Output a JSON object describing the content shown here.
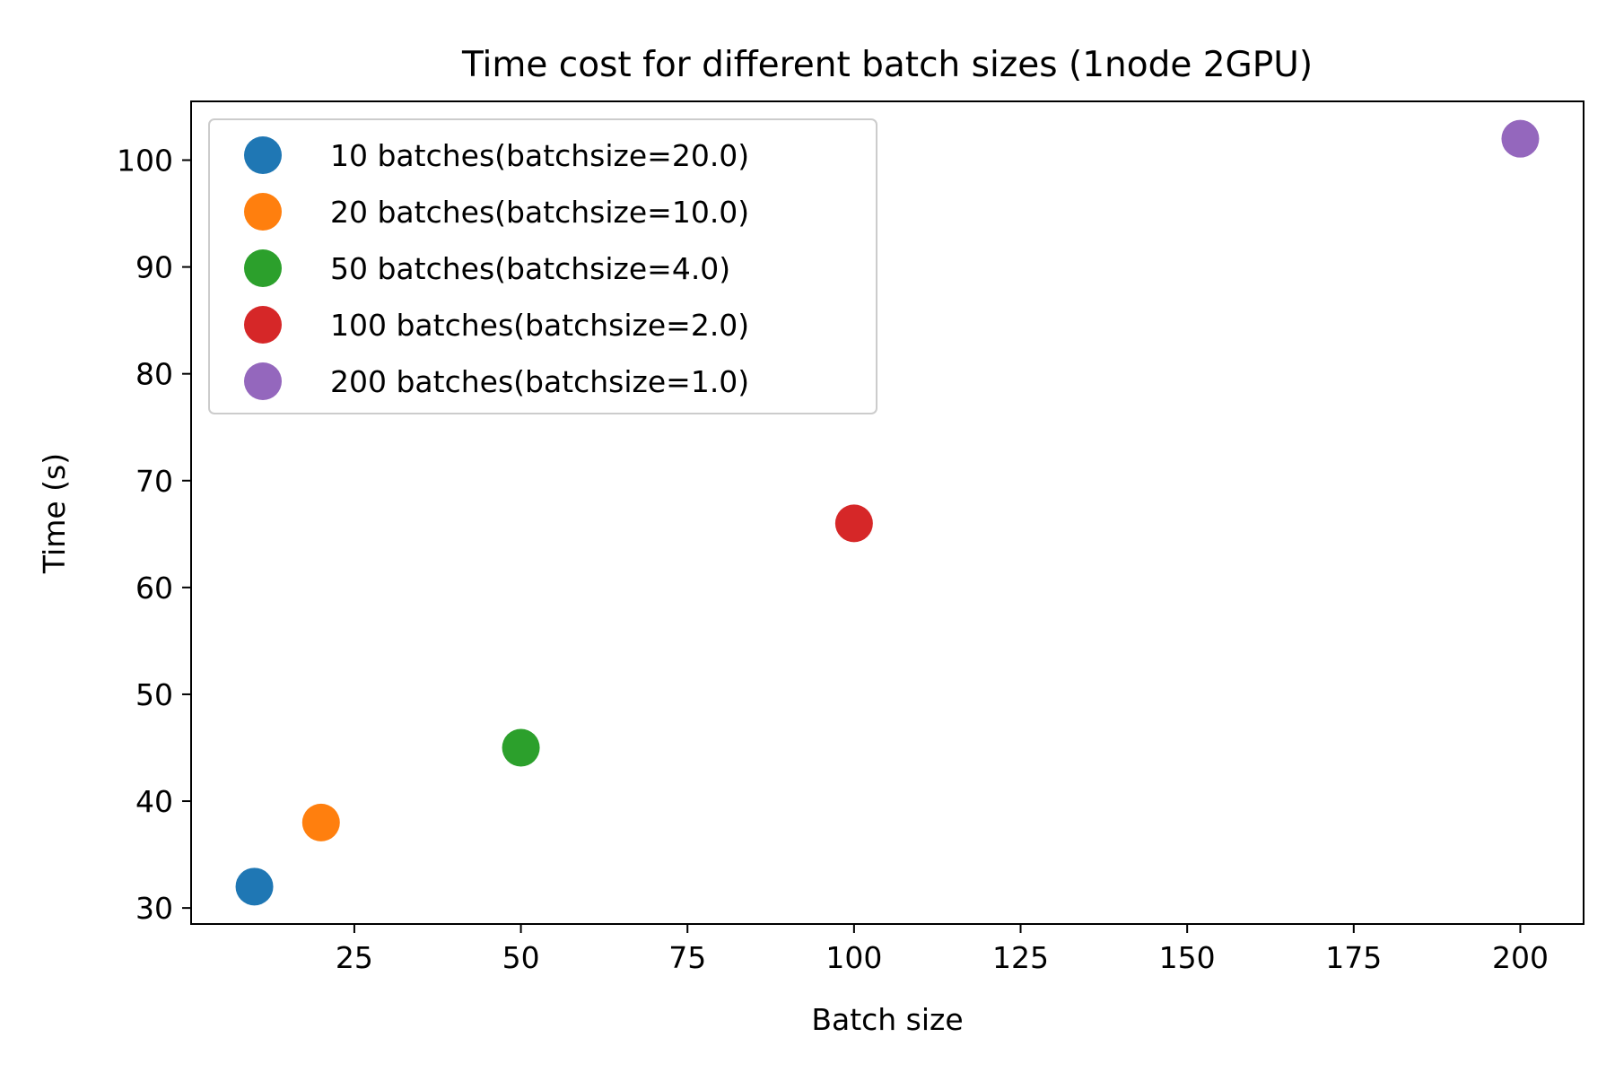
{
  "chart_data": {
    "type": "scatter",
    "title": "Time cost for different batch sizes (1node 2GPU)",
    "xlabel": "Batch size",
    "ylabel": "Time (s)",
    "xlim": [
      0.5,
      209.5
    ],
    "ylim": [
      28.5,
      105.5
    ],
    "xticks": [
      25,
      50,
      75,
      100,
      125,
      150,
      175,
      200
    ],
    "yticks": [
      30,
      40,
      50,
      60,
      70,
      80,
      90,
      100
    ],
    "grid": false,
    "legend_position": "top-left",
    "series": [
      {
        "name": "10 batches(batchsize=20.0)",
        "color": "#1f77b4",
        "points": [
          {
            "x": 10,
            "y": 32
          }
        ]
      },
      {
        "name": "20 batches(batchsize=10.0)",
        "color": "#ff7f0e",
        "points": [
          {
            "x": 20,
            "y": 38
          }
        ]
      },
      {
        "name": "50 batches(batchsize=4.0)",
        "color": "#2ca02c",
        "points": [
          {
            "x": 50,
            "y": 45
          }
        ]
      },
      {
        "name": "100 batches(batchsize=2.0)",
        "color": "#d62728",
        "points": [
          {
            "x": 100,
            "y": 66
          }
        ]
      },
      {
        "name": "200 batches(batchsize=1.0)",
        "color": "#9467bd",
        "points": [
          {
            "x": 200,
            "y": 102
          }
        ]
      }
    ]
  }
}
